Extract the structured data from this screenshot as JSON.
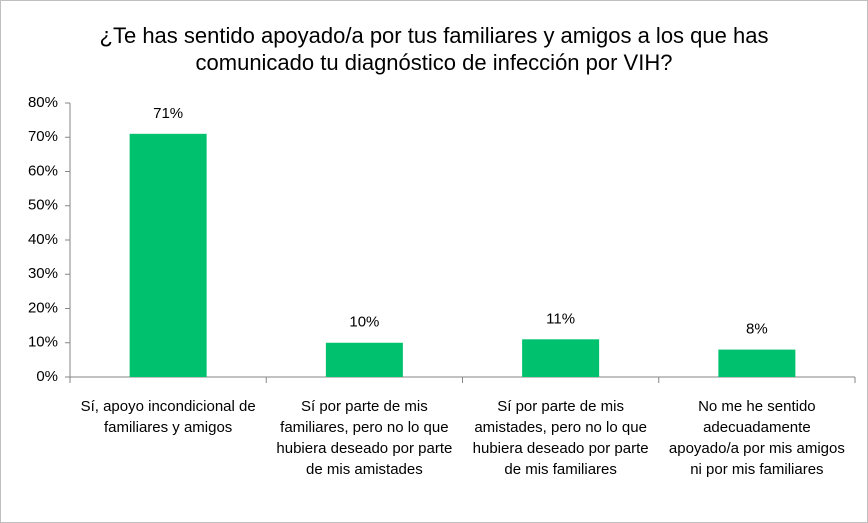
{
  "chart_data": {
    "type": "bar",
    "title": "¿Te has sentido apoyado/a por tus familiares y amigos a los que has comunicado tu diagnóstico de infección por VIH?",
    "categories": [
      "Sí, apoyo incondicional de familiares y amigos",
      "Sí por parte de mis familiares, pero no lo que hubiera deseado por parte de mis amistades",
      "Sí por parte de mis amistades, pero no lo que hubiera deseado por parte de mis familiares",
      "No me he sentido adecuadamente apoyado/a por mis amigos ni por mis familiares"
    ],
    "values": [
      71,
      10,
      11,
      8
    ],
    "value_labels": [
      "71%",
      "10%",
      "11%",
      "8%"
    ],
    "color": "#00c16e",
    "ylim": [
      0,
      80
    ],
    "yticks": [
      {
        "value": 0,
        "label": "0%"
      },
      {
        "value": 10,
        "label": "10%"
      },
      {
        "value": 20,
        "label": "20%"
      },
      {
        "value": 30,
        "label": "30%"
      },
      {
        "value": 40,
        "label": "40%"
      },
      {
        "value": 50,
        "label": "50%"
      },
      {
        "value": 60,
        "label": "60%"
      },
      {
        "value": 70,
        "label": "70%"
      },
      {
        "value": 80,
        "label": "80%"
      }
    ],
    "grid": false
  }
}
